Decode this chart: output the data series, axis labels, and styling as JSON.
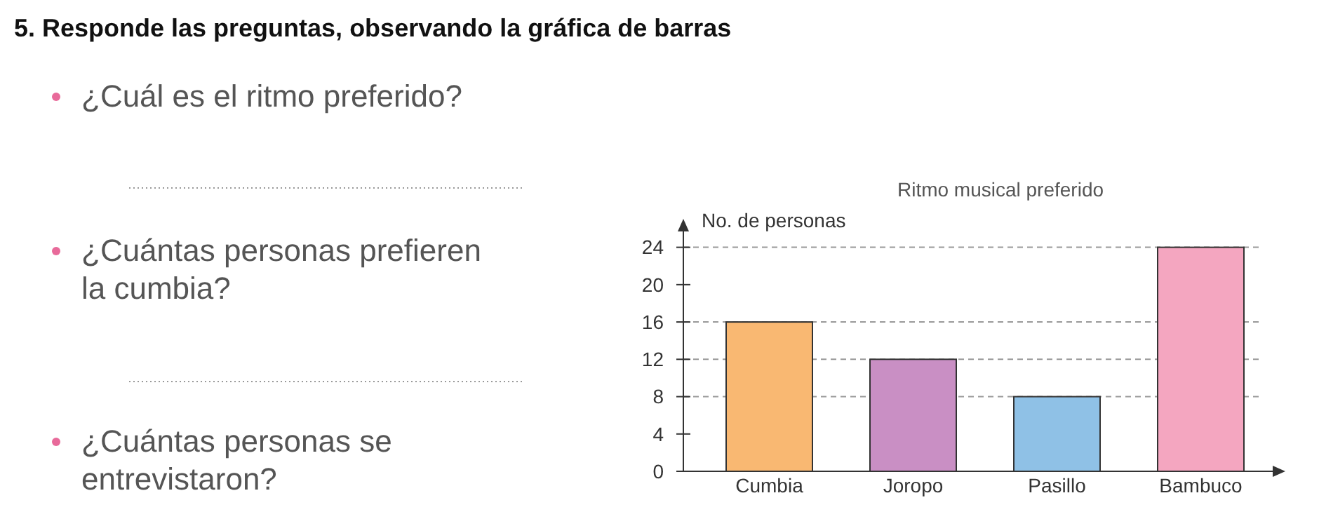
{
  "chart_data": {
    "type": "bar",
    "title": "Ritmo musical preferido",
    "ylabel": "No. de personas",
    "categories": [
      "Cumbia",
      "Joropo",
      "Pasillo",
      "Bambuco"
    ],
    "values": [
      16,
      12,
      8,
      24
    ],
    "colors": [
      "#f9b872",
      "#c98fc4",
      "#8fc1e6",
      "#f4a6c0"
    ],
    "ylim": [
      0,
      26
    ],
    "yticks": [
      0,
      4,
      8,
      12,
      16,
      20,
      24
    ],
    "grid": false,
    "ref_lines": [
      {
        "axis": "y",
        "value": 24,
        "line_style": "dashed",
        "color": "#999999"
      },
      {
        "axis": "y",
        "value": 16,
        "line_style": "dashed",
        "color": "#999999"
      },
      {
        "axis": "y",
        "value": 12,
        "line_style": "dashed",
        "color": "#999999"
      },
      {
        "axis": "y",
        "value": 8,
        "line_style": "dashed",
        "color": "#999999"
      }
    ],
    "annotations": [
      "5.  Responde las preguntas, observando la gráfica de barras",
      "¿Cuál es el ritmo preferido?",
      "¿Cuántas personas prefieren la cumbia?",
      "¿Cuántas personas se entrevistaron?"
    ]
  }
}
